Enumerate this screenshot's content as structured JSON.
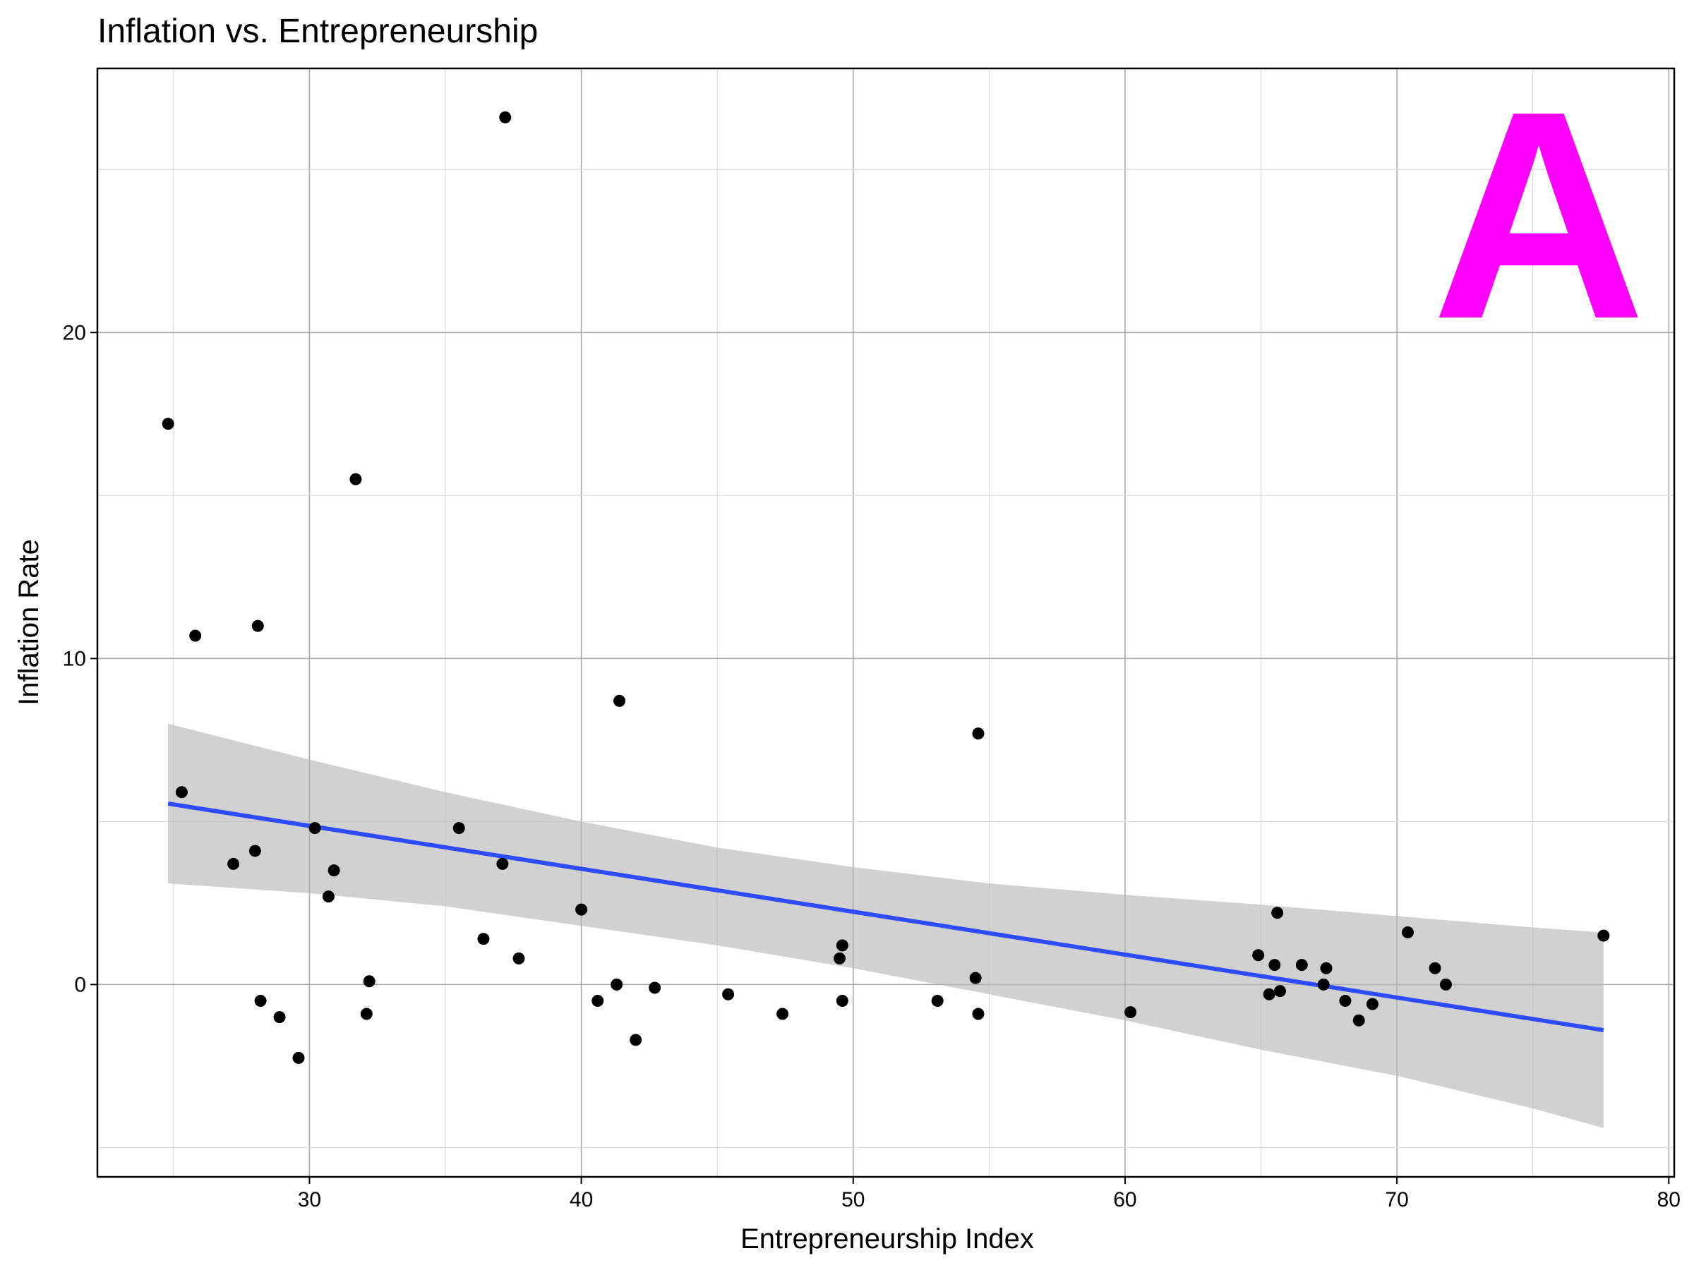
{
  "chart_data": {
    "type": "scatter",
    "title": "Inflation vs. Entrepreneurship",
    "xlabel": "Entrepreneurship Index",
    "ylabel": "Inflation Rate",
    "xlim": [
      22.2,
      80.2
    ],
    "ylim": [
      -5.9,
      28.1
    ],
    "x_ticks": [
      30,
      40,
      50,
      60,
      70,
      80
    ],
    "y_ticks": [
      0,
      10,
      20
    ],
    "grid": true,
    "panel_label": "A",
    "panel_label_color": "#FF00FF",
    "point_color": "#000000",
    "fit_color": "#2E4BFF",
    "band_color": "#B4B4B4",
    "points": [
      {
        "x": 24.8,
        "y": 17.2
      },
      {
        "x": 25.3,
        "y": 5.9
      },
      {
        "x": 25.8,
        "y": 10.7
      },
      {
        "x": 27.2,
        "y": 3.7
      },
      {
        "x": 28.0,
        "y": 4.1
      },
      {
        "x": 28.1,
        "y": 11.0
      },
      {
        "x": 28.2,
        "y": -0.5
      },
      {
        "x": 28.9,
        "y": -1.0
      },
      {
        "x": 29.6,
        "y": -2.25
      },
      {
        "x": 30.2,
        "y": 4.8
      },
      {
        "x": 30.7,
        "y": 2.7
      },
      {
        "x": 30.9,
        "y": 3.5
      },
      {
        "x": 31.7,
        "y": 15.5
      },
      {
        "x": 32.1,
        "y": -0.9
      },
      {
        "x": 32.2,
        "y": 0.1
      },
      {
        "x": 35.5,
        "y": 4.8
      },
      {
        "x": 36.4,
        "y": 1.4
      },
      {
        "x": 37.1,
        "y": 3.7
      },
      {
        "x": 37.2,
        "y": 26.6
      },
      {
        "x": 37.7,
        "y": 0.8
      },
      {
        "x": 40.0,
        "y": 2.3
      },
      {
        "x": 40.6,
        "y": -0.5
      },
      {
        "x": 41.3,
        "y": 0.0
      },
      {
        "x": 41.4,
        "y": 8.7
      },
      {
        "x": 42.0,
        "y": -1.7
      },
      {
        "x": 42.7,
        "y": -0.1
      },
      {
        "x": 45.4,
        "y": -0.3
      },
      {
        "x": 47.4,
        "y": -0.9
      },
      {
        "x": 49.5,
        "y": 0.8
      },
      {
        "x": 49.6,
        "y": 1.2
      },
      {
        "x": 49.6,
        "y": -0.5
      },
      {
        "x": 53.1,
        "y": -0.5
      },
      {
        "x": 54.5,
        "y": 0.2
      },
      {
        "x": 54.6,
        "y": 7.7
      },
      {
        "x": 54.6,
        "y": -0.9
      },
      {
        "x": 60.2,
        "y": -0.85
      },
      {
        "x": 64.9,
        "y": 0.9
      },
      {
        "x": 65.3,
        "y": -0.3
      },
      {
        "x": 65.5,
        "y": 0.6
      },
      {
        "x": 65.6,
        "y": 2.2
      },
      {
        "x": 65.7,
        "y": -0.2
      },
      {
        "x": 66.5,
        "y": 0.6
      },
      {
        "x": 67.3,
        "y": 0.0
      },
      {
        "x": 67.4,
        "y": 0.5
      },
      {
        "x": 68.1,
        "y": -0.5
      },
      {
        "x": 68.6,
        "y": -1.1
      },
      {
        "x": 69.1,
        "y": -0.6
      },
      {
        "x": 70.4,
        "y": 1.6
      },
      {
        "x": 71.4,
        "y": 0.5
      },
      {
        "x": 71.8,
        "y": 0.0
      },
      {
        "x": 77.6,
        "y": 1.5
      }
    ],
    "fit_line": {
      "x": [
        24.8,
        77.6
      ],
      "y": [
        5.55,
        -1.4
      ]
    },
    "confidence_band": {
      "x": [
        24.8,
        30,
        35,
        40,
        45,
        50,
        55,
        60,
        65,
        70,
        75,
        77.6
      ],
      "upper": [
        8.0,
        6.9,
        5.9,
        5.0,
        4.2,
        3.6,
        3.1,
        2.75,
        2.45,
        2.1,
        1.75,
        1.6
      ],
      "lower": [
        3.1,
        2.8,
        2.4,
        1.8,
        1.2,
        0.5,
        -0.3,
        -1.1,
        -2.0,
        -2.8,
        -3.8,
        -4.4
      ]
    }
  }
}
